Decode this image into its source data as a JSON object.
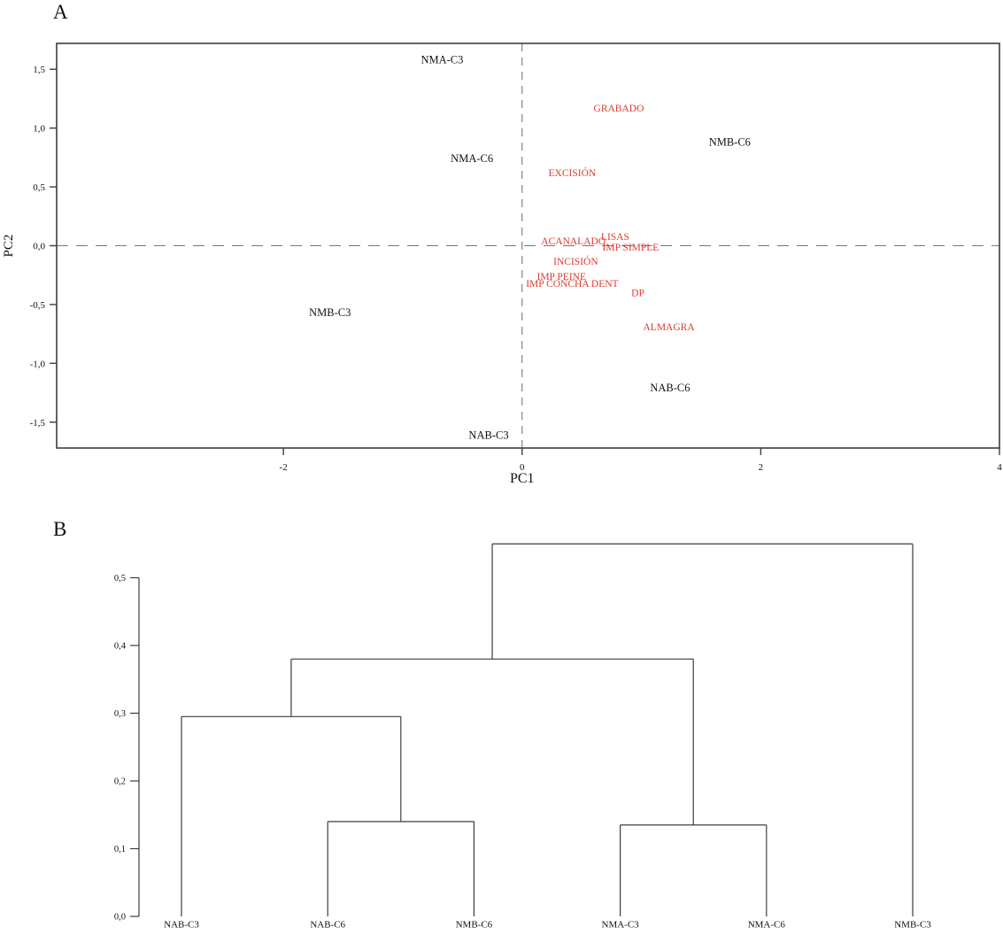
{
  "figure": {
    "panels": [
      {
        "letter": "A"
      },
      {
        "letter": "B"
      }
    ]
  },
  "colors": {
    "sample_label": "#111111",
    "variable_label": "#dc3b30",
    "axis_line": "#3d3d3d",
    "zero_line": "#777777"
  },
  "chart_data": [
    {
      "type": "scatter",
      "name": "pca_biplot",
      "panel": "A",
      "xlabel": "PC1",
      "ylabel": "PC2",
      "xlim": [
        -3.9,
        4.0
      ],
      "ylim": [
        -1.72,
        1.72
      ],
      "grid": false,
      "zero_lines_dashed": true,
      "xticks": [
        {
          "v": -2,
          "label": "-2"
        },
        {
          "v": 0,
          "label": "0"
        },
        {
          "v": 2,
          "label": "2"
        },
        {
          "v": 4,
          "label": "4"
        }
      ],
      "yticks": [
        {
          "v": 1.5,
          "label": "1,5"
        },
        {
          "v": 1.0,
          "label": "1,0"
        },
        {
          "v": 0.5,
          "label": "0,5"
        },
        {
          "v": 0.0,
          "label": "0,0"
        },
        {
          "v": -0.5,
          "label": "-0,5"
        },
        {
          "v": -1.0,
          "label": "-1,0"
        },
        {
          "v": -1.5,
          "label": "-1,5"
        }
      ],
      "series": [
        {
          "name": "samples",
          "color_key": "sample_label",
          "points": [
            {
              "label": "NMA-C3",
              "x": -0.67,
              "y": 1.58
            },
            {
              "label": "NMB-C6",
              "x": 1.74,
              "y": 0.88
            },
            {
              "label": "NMA-C6",
              "x": -0.42,
              "y": 0.74
            },
            {
              "label": "NMB-C3",
              "x": -1.61,
              "y": -0.57
            },
            {
              "label": "NAB-C6",
              "x": 1.24,
              "y": -1.21
            },
            {
              "label": "NAB-C3",
              "x": -0.28,
              "y": -1.61
            }
          ]
        },
        {
          "name": "variables",
          "color_key": "variable_label",
          "points": [
            {
              "label": "GRABADO",
              "x": 0.81,
              "y": 1.17
            },
            {
              "label": "EXCISIÓN",
              "x": 0.42,
              "y": 0.62
            },
            {
              "label": "LISAS",
              "x": 0.78,
              "y": 0.08
            },
            {
              "label": "ACANALADO",
              "x": 0.43,
              "y": 0.04
            },
            {
              "label": "IMP SIMPLE",
              "x": 0.91,
              "y": -0.01
            },
            {
              "label": "INCISIÓN",
              "x": 0.45,
              "y": -0.13
            },
            {
              "label": "IMP PEINE",
              "x": 0.33,
              "y": -0.26
            },
            {
              "label": "IMP CONCHA DENT",
              "x": 0.42,
              "y": -0.32
            },
            {
              "label": "DP",
              "x": 0.97,
              "y": -0.4
            },
            {
              "label": "ALMAGRA",
              "x": 1.23,
              "y": -0.69
            }
          ]
        }
      ]
    },
    {
      "type": "dendrogram",
      "name": "cluster_dendrogram",
      "panel": "B",
      "ylim": [
        0.0,
        0.5
      ],
      "yticks": [
        {
          "v": 0.5,
          "label": "0,5"
        },
        {
          "v": 0.4,
          "label": "0,4"
        },
        {
          "v": 0.3,
          "label": "0,3"
        },
        {
          "v": 0.2,
          "label": "0,2"
        },
        {
          "v": 0.1,
          "label": "0,1"
        },
        {
          "v": 0.0,
          "label": "0,0"
        }
      ],
      "leaves": [
        "NAB-C3",
        "NAB-C6",
        "NMB-C6",
        "NMA-C3",
        "NMA-C6",
        "NMB-C3"
      ],
      "tree": {
        "height": 0.55,
        "children": [
          {
            "height": 0.38,
            "children": [
              {
                "height": 0.295,
                "children": [
                  {
                    "leaf": "NAB-C3"
                  },
                  {
                    "height": 0.14,
                    "children": [
                      {
                        "leaf": "NAB-C6"
                      },
                      {
                        "leaf": "NMB-C6"
                      }
                    ]
                  }
                ]
              },
              {
                "height": 0.135,
                "children": [
                  {
                    "leaf": "NMA-C3"
                  },
                  {
                    "leaf": "NMA-C6"
                  }
                ]
              }
            ]
          },
          {
            "leaf": "NMB-C3"
          }
        ]
      }
    }
  ]
}
